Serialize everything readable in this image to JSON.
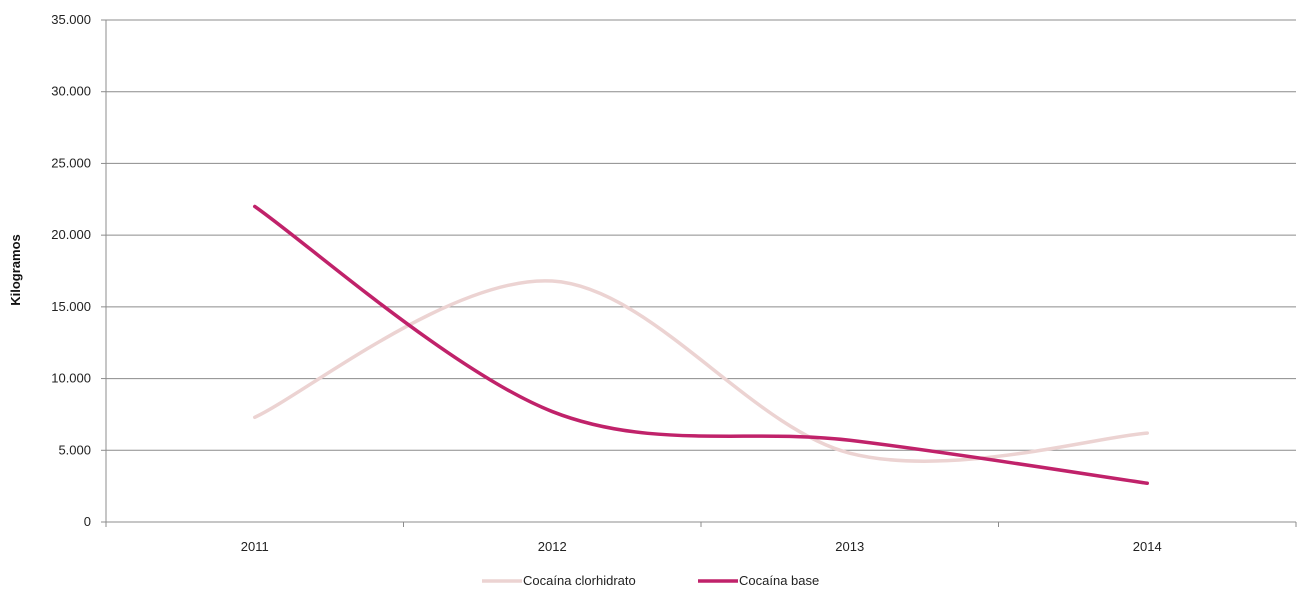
{
  "chart_data": {
    "type": "line",
    "title": "",
    "xlabel": "",
    "ylabel": "Kilogramos",
    "categories": [
      "2011",
      "2012",
      "2013",
      "2014"
    ],
    "ylim": [
      0,
      35000
    ],
    "yticks": [
      0,
      5000,
      10000,
      15000,
      20000,
      25000,
      30000,
      35000
    ],
    "ytick_labels": [
      "0",
      "5.000",
      "10.000",
      "15.000",
      "20.000",
      "25.000",
      "30.000",
      "35.000"
    ],
    "grid": true,
    "smooth": true,
    "legend_position": "bottom",
    "series": [
      {
        "name": "Cocaína clorhidrato",
        "values": [
          7300,
          16800,
          4800,
          6200
        ],
        "color": "#ecd3d2"
      },
      {
        "name": "Cocaína base",
        "values": [
          22000,
          7700,
          5700,
          2700
        ],
        "color": "#c0226a"
      }
    ]
  }
}
